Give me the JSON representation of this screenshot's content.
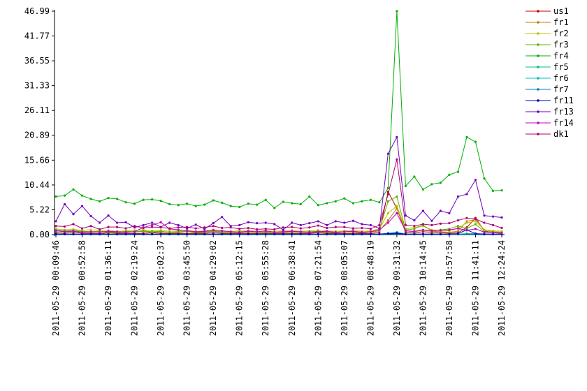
{
  "chart_data": {
    "type": "line",
    "categories": [
      "2011-05-29 00:09:46",
      null,
      null,
      "2011-05-29 00:52:58",
      null,
      null,
      "2011-05-29 01:36:11",
      null,
      null,
      "2011-05-29 02:19:24",
      null,
      null,
      "2011-05-29 03:02:37",
      null,
      null,
      "2011-05-29 03:45:50",
      null,
      null,
      "2011-05-29 04:29:02",
      null,
      null,
      "2011-05-29 05:12:15",
      null,
      null,
      "2011-05-29 05:55:28",
      null,
      null,
      "2011-05-29 06:38:41",
      null,
      null,
      "2011-05-29 07:21:54",
      null,
      null,
      "2011-05-29 08:05:07",
      null,
      null,
      "2011-05-29 08:48:19",
      null,
      null,
      "2011-05-29 09:31:32",
      null,
      null,
      "2011-05-29 10:14:45",
      null,
      null,
      "2011-05-29 10:57:58",
      null,
      null,
      "2011-05-29 11:41:11",
      null,
      null,
      "2011-05-29 12:24:24"
    ],
    "ylim": [
      0,
      46.99
    ],
    "yticks": [
      {
        "value": 0,
        "label": "0.00"
      },
      5.22,
      10.44,
      15.66,
      20.89,
      26.11,
      31.33,
      36.55,
      41.77,
      46.99
    ],
    "legend": "right",
    "series": [
      {
        "name": "us1",
        "color": "#c00000",
        "values": [
          0.4,
          0.3,
          0.5,
          0.3,
          0.3,
          0.2,
          0.4,
          0.3,
          0.3,
          0.2,
          0.3,
          0.4,
          0.3,
          0.2,
          0.3,
          0.2,
          0.3,
          0.3,
          0.4,
          0.3,
          0.2,
          0.3,
          0.3,
          0.2,
          0.3,
          0.2,
          0.3,
          0.3,
          0.2,
          0.3,
          0.4,
          0.3,
          0.3,
          0.2,
          0.3,
          0.3,
          0.2,
          0.5,
          9.0,
          5.5,
          0.5,
          0.4,
          0.6,
          0.5,
          0.4,
          0.3,
          0.4,
          1.5,
          3.5,
          0.8,
          0.4,
          0.3
        ]
      },
      {
        "name": "fr1",
        "color": "#c08000",
        "values": [
          0.9,
          0.7,
          0.8,
          0.6,
          0.5,
          0.6,
          0.5,
          0.4,
          0.6,
          0.5,
          0.7,
          0.5,
          0.6,
          0.4,
          0.5,
          0.6,
          0.4,
          0.5,
          0.7,
          0.5,
          0.4,
          0.5,
          0.6,
          0.4,
          0.5,
          0.4,
          0.5,
          0.6,
          0.4,
          0.5,
          0.6,
          0.5,
          0.4,
          0.5,
          0.6,
          0.4,
          0.5,
          0.8,
          3.0,
          5.5,
          0.8,
          0.6,
          0.9,
          0.7,
          0.6,
          0.5,
          0.7,
          2.8,
          3.2,
          1.0,
          0.6,
          0.5
        ]
      },
      {
        "name": "fr2",
        "color": "#c0c000",
        "values": [
          1.2,
          1.0,
          1.1,
          0.9,
          1.0,
          0.8,
          0.9,
          0.7,
          0.8,
          0.9,
          1.0,
          0.8,
          0.9,
          0.7,
          0.8,
          0.9,
          0.7,
          0.8,
          0.9,
          0.8,
          0.7,
          0.8,
          0.9,
          0.7,
          0.8,
          0.7,
          0.8,
          0.9,
          0.7,
          0.8,
          0.9,
          0.8,
          0.7,
          0.8,
          0.9,
          0.7,
          0.8,
          1.2,
          4.5,
          6.0,
          1.2,
          1.5,
          1.8,
          1.0,
          0.9,
          0.8,
          1.3,
          2.5,
          2.8,
          1.0,
          0.8,
          0.7
        ]
      },
      {
        "name": "fr3",
        "color": "#60b000",
        "values": [
          1.0,
          0.8,
          0.9,
          0.7,
          0.6,
          0.7,
          0.6,
          0.5,
          0.7,
          0.6,
          0.8,
          0.6,
          0.7,
          0.5,
          0.6,
          0.7,
          0.5,
          0.6,
          0.8,
          0.6,
          0.5,
          0.6,
          0.7,
          0.5,
          0.6,
          0.5,
          0.6,
          0.7,
          0.5,
          0.6,
          0.7,
          0.6,
          0.5,
          0.6,
          0.7,
          0.5,
          0.6,
          1.0,
          7.0,
          8.0,
          1.0,
          1.2,
          2.0,
          0.8,
          1.0,
          1.2,
          1.8,
          1.3,
          2.2,
          0.6,
          0.5,
          0.4
        ]
      },
      {
        "name": "fr4",
        "color": "#00b000",
        "values": [
          8.0,
          8.2,
          9.5,
          8.2,
          7.5,
          7.0,
          7.7,
          7.5,
          6.8,
          6.5,
          7.3,
          7.4,
          7.1,
          6.4,
          6.2,
          6.5,
          6.0,
          6.3,
          7.2,
          6.7,
          6.0,
          5.8,
          6.5,
          6.3,
          7.3,
          5.6,
          6.9,
          6.6,
          6.4,
          8.0,
          6.2,
          6.6,
          7.0,
          7.6,
          6.6,
          7.0,
          7.3,
          6.8,
          9.8,
          46.99,
          10.2,
          12.2,
          9.5,
          10.6,
          10.9,
          12.6,
          13.2,
          20.5,
          19.5,
          11.8,
          9.2,
          9.3
        ]
      },
      {
        "name": "fr5",
        "color": "#00c080",
        "values": [
          0.2,
          0.1,
          0.1,
          0.1,
          0.1,
          0.1,
          0.1,
          0.1,
          0.1,
          0.1,
          0.1,
          0.1,
          0.1,
          0.1,
          0.1,
          0.1,
          0.1,
          0.1,
          0.1,
          0.1,
          0.1,
          0.1,
          0.1,
          0.1,
          0.1,
          0.1,
          0.1,
          0.1,
          0.1,
          0.1,
          0.1,
          0.1,
          0.1,
          0.1,
          0.1,
          0.1,
          0.1,
          0.1,
          0.3,
          0.5,
          0.1,
          0.1,
          0.1,
          0.1,
          0.1,
          0.1,
          0.1,
          0.2,
          0.2,
          0.1,
          0.1,
          0.1
        ]
      },
      {
        "name": "fr6",
        "color": "#00c0c0",
        "values": [
          0.1,
          0.1,
          0.1,
          0.1,
          0.1,
          0.1,
          0.1,
          0.1,
          0.1,
          0.1,
          0.1,
          0.1,
          0.1,
          0.1,
          0.1,
          0.1,
          0.1,
          0.1,
          0.1,
          0.1,
          0.1,
          0.1,
          0.1,
          0.1,
          0.1,
          0.1,
          0.1,
          0.1,
          0.1,
          0.1,
          0.1,
          0.1,
          0.1,
          0.1,
          0.1,
          0.1,
          0.1,
          0.1,
          0.2,
          0.3,
          0.1,
          0.1,
          0.1,
          0.1,
          0.1,
          0.1,
          0.1,
          0.1,
          0.1,
          0.1,
          0.1,
          0.1
        ]
      },
      {
        "name": "fr7",
        "color": "#0080c0",
        "values": [
          0.05,
          0.05,
          0.05,
          0.05,
          0.05,
          0.05,
          0.05,
          0.05,
          0.05,
          0.05,
          0.05,
          0.05,
          0.05,
          0.05,
          0.05,
          0.05,
          0.05,
          0.05,
          0.05,
          0.05,
          0.05,
          0.05,
          0.05,
          0.05,
          0.05,
          0.05,
          0.05,
          0.05,
          0.05,
          0.05,
          0.05,
          0.05,
          0.05,
          0.05,
          0.05,
          0.05,
          0.05,
          0.05,
          0.1,
          0.2,
          0.05,
          0.05,
          0.05,
          0.05,
          0.05,
          0.05,
          0.05,
          0.1,
          0.1,
          0.05,
          0.05,
          0.05
        ]
      },
      {
        "name": "fr11",
        "color": "#0000c0",
        "values": [
          0.1,
          0.1,
          0.1,
          0.1,
          0.1,
          0.1,
          0.1,
          0.1,
          0.1,
          0.1,
          0.1,
          0.1,
          0.1,
          0.1,
          0.1,
          0.1,
          0.1,
          0.1,
          0.1,
          0.1,
          0.1,
          0.1,
          0.1,
          0.1,
          0.1,
          0.1,
          0.1,
          0.1,
          0.1,
          0.1,
          0.1,
          0.1,
          0.1,
          0.1,
          0.1,
          0.1,
          0.1,
          0.1,
          0.2,
          0.3,
          0.1,
          0.1,
          0.1,
          0.1,
          0.1,
          0.1,
          0.2,
          1.0,
          0.2,
          0.1,
          0.1,
          0.1
        ]
      },
      {
        "name": "fr13",
        "color": "#7000c0",
        "values": [
          2.8,
          6.4,
          4.3,
          6.0,
          3.9,
          2.5,
          4.0,
          2.5,
          2.6,
          1.5,
          2.0,
          2.5,
          1.6,
          2.5,
          2.0,
          1.3,
          2.1,
          1.2,
          2.4,
          3.7,
          1.8,
          2.0,
          2.6,
          2.4,
          2.5,
          2.2,
          1.0,
          2.5,
          2.0,
          2.4,
          2.8,
          2.0,
          2.8,
          2.5,
          2.9,
          2.2,
          2.0,
          1.3,
          17.0,
          20.5,
          4.0,
          3.0,
          5.0,
          2.9,
          5.0,
          4.5,
          8.0,
          8.5,
          11.5,
          4.0,
          3.8,
          3.6
        ]
      },
      {
        "name": "fr14",
        "color": "#c000c0",
        "values": [
          0.8,
          0.6,
          0.7,
          0.5,
          0.6,
          0.5,
          0.7,
          0.6,
          0.5,
          0.6,
          1.5,
          2.0,
          2.6,
          1.2,
          1.0,
          0.8,
          0.6,
          0.7,
          1.0,
          0.8,
          0.6,
          0.5,
          0.7,
          0.6,
          0.8,
          0.5,
          0.6,
          0.7,
          0.6,
          0.5,
          0.6,
          0.7,
          0.5,
          0.6,
          0.7,
          0.5,
          0.6,
          1.0,
          2.5,
          4.5,
          0.8,
          0.7,
          1.0,
          0.8,
          0.9,
          1.0,
          1.3,
          0.9,
          1.2,
          0.5,
          0.4,
          0.3
        ]
      },
      {
        "name": "dk1",
        "color": "#b00070",
        "values": [
          1.8,
          1.7,
          2.2,
          1.3,
          1.8,
          1.1,
          1.6,
          1.6,
          1.3,
          1.8,
          1.4,
          1.6,
          1.5,
          1.3,
          1.5,
          1.6,
          1.3,
          1.5,
          1.8,
          1.4,
          1.5,
          1.2,
          1.4,
          1.1,
          1.2,
          1.1,
          1.5,
          1.6,
          1.3,
          1.5,
          1.9,
          1.4,
          1.6,
          1.6,
          1.3,
          1.4,
          1.2,
          2.0,
          8.5,
          15.8,
          2.0,
          1.8,
          2.2,
          2.0,
          2.3,
          2.4,
          3.0,
          3.5,
          3.3,
          2.5,
          2.0,
          1.4
        ]
      }
    ]
  }
}
